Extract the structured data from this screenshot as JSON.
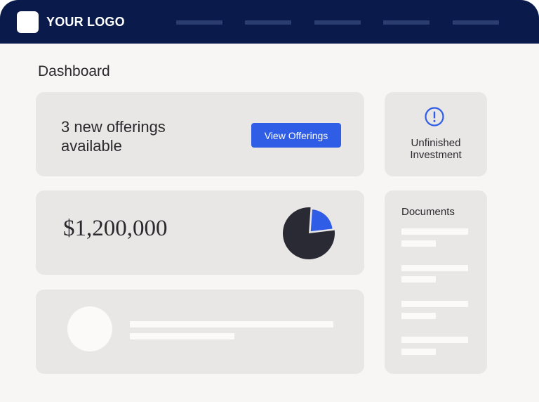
{
  "header": {
    "logo_text": "YOUR LOGO",
    "nav_links": [
      "",
      "",
      "",
      "",
      ""
    ]
  },
  "page": {
    "title": "Dashboard"
  },
  "offerings_card": {
    "text": "3 new offerings available",
    "button_label": "View Offerings"
  },
  "alert_card": {
    "icon": "exclamation-circle-icon",
    "text": "Unfinished Investment"
  },
  "portfolio_card": {
    "amount": "$1,200,000",
    "pie_fraction": 0.22
  },
  "documents_card": {
    "title": "Documents",
    "items": 4
  },
  "colors": {
    "header_bg": "#0a1a4a",
    "accent": "#2f5de6",
    "pie_main": "#292a33",
    "card_bg": "#e8e7e5",
    "page_bg": "#f7f6f4"
  }
}
